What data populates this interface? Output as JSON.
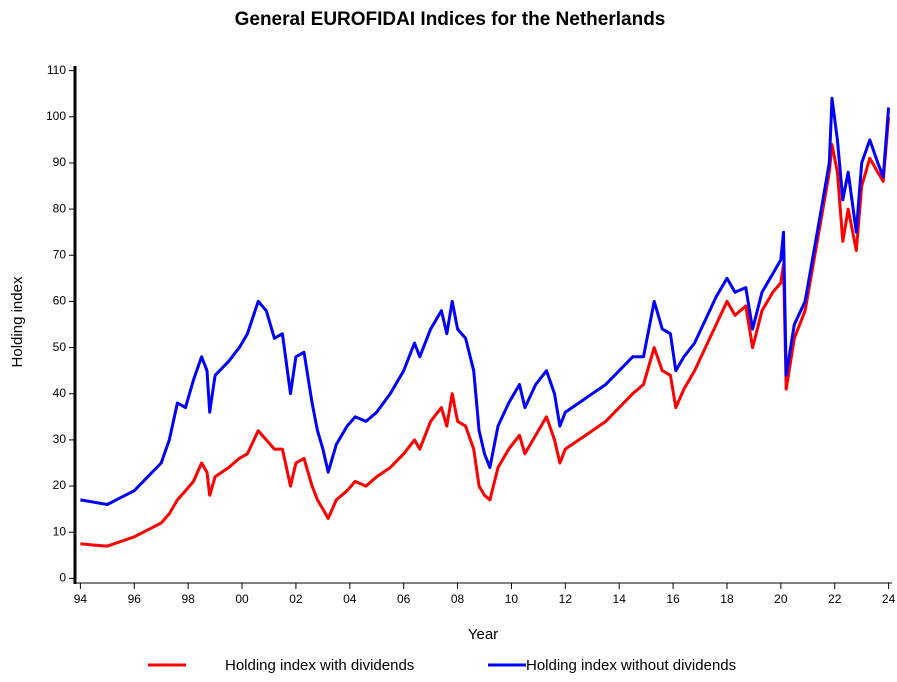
{
  "chart_data": {
    "type": "line",
    "title": "General EUROFIDAI Indices for the Netherlands",
    "x_label": "Year",
    "y_label": "Holding index",
    "x": [
      1994.0,
      1994.5,
      1995.0,
      1995.5,
      1996.0,
      1996.5,
      1997.0,
      1997.3,
      1997.6,
      1997.9,
      1998.2,
      1998.5,
      1998.7,
      1998.8,
      1999.0,
      1999.5,
      1999.9,
      2000.2,
      2000.6,
      2000.9,
      2001.2,
      2001.5,
      2001.8,
      2002.0,
      2002.3,
      2002.6,
      2002.8,
      2003.0,
      2003.2,
      2003.5,
      2003.9,
      2004.2,
      2004.6,
      2005.0,
      2005.5,
      2006.0,
      2006.4,
      2006.6,
      2007.0,
      2007.4,
      2007.6,
      2007.8,
      2008.0,
      2008.3,
      2008.6,
      2008.8,
      2009.0,
      2009.2,
      2009.5,
      2009.9,
      2010.3,
      2010.5,
      2010.9,
      2011.3,
      2011.6,
      2011.8,
      2012.0,
      2012.5,
      2013.0,
      2013.5,
      2014.0,
      2014.5,
      2014.9,
      2015.3,
      2015.6,
      2015.9,
      2016.1,
      2016.4,
      2016.8,
      2017.2,
      2017.6,
      2018.0,
      2018.3,
      2018.7,
      2018.95,
      2019.3,
      2019.7,
      2020.0,
      2020.1,
      2020.2,
      2020.5,
      2020.9,
      2021.2,
      2021.5,
      2021.8,
      2021.9,
      2022.1,
      2022.3,
      2022.5,
      2022.8,
      2023.0,
      2023.3,
      2023.6,
      2023.8,
      2024.0
    ],
    "series": [
      {
        "name": "Holding index with dividends",
        "color": "#ff0000",
        "values": [
          7.5,
          7.2,
          7,
          8,
          9,
          10.5,
          12,
          14,
          17,
          19,
          21,
          25,
          23,
          18,
          22,
          24,
          26,
          27,
          32,
          30,
          28,
          28,
          20,
          25,
          26,
          20,
          17,
          15,
          13,
          17,
          19,
          21,
          20,
          22,
          24,
          27,
          30,
          28,
          34,
          37,
          33,
          40,
          34,
          33,
          28,
          20,
          18,
          17,
          24,
          28,
          31,
          27,
          31,
          35,
          30,
          25,
          28,
          30,
          32,
          34,
          37,
          40,
          42,
          50,
          45,
          44,
          37,
          41,
          45,
          50,
          55,
          60,
          57,
          59,
          50,
          58,
          62,
          64,
          68,
          41,
          52,
          58,
          68,
          78,
          88,
          94,
          88,
          73,
          80,
          71,
          85,
          91,
          88,
          86,
          100
        ]
      },
      {
        "name": "Holding index without dividends",
        "color": "#0000ff",
        "values": [
          17,
          16.5,
          16,
          17.5,
          19,
          22,
          25,
          30,
          38,
          37,
          43,
          48,
          45,
          36,
          44,
          47,
          50,
          53,
          60,
          58,
          52,
          53,
          40,
          48,
          49,
          38,
          32,
          28,
          23,
          29,
          33,
          35,
          34,
          36,
          40,
          45,
          51,
          48,
          54,
          58,
          53,
          60,
          54,
          52,
          45,
          32,
          27,
          24,
          33,
          38,
          42,
          37,
          42,
          45,
          40,
          33,
          36,
          38,
          40,
          42,
          45,
          48,
          48,
          60,
          54,
          53,
          45,
          48,
          51,
          56,
          61,
          65,
          62,
          63,
          54,
          62,
          66,
          69,
          75,
          44,
          55,
          60,
          70,
          80,
          90,
          104,
          95,
          82,
          88,
          75,
          90,
          95,
          90,
          87,
          102
        ]
      }
    ],
    "xlim": [
      1993.8,
      2024.2
    ],
    "xticks": [
      {
        "value": 1994,
        "label": "94"
      },
      {
        "value": 1996,
        "label": "96"
      },
      {
        "value": 1998,
        "label": "98"
      },
      {
        "value": 2000,
        "label": "00"
      },
      {
        "value": 2002,
        "label": "02"
      },
      {
        "value": 2004,
        "label": "04"
      },
      {
        "value": 2006,
        "label": "06"
      },
      {
        "value": 2008,
        "label": "08"
      },
      {
        "value": 2010,
        "label": "10"
      },
      {
        "value": 2012,
        "label": "12"
      },
      {
        "value": 2014,
        "label": "14"
      },
      {
        "value": 2016,
        "label": "16"
      },
      {
        "value": 2018,
        "label": "18"
      },
      {
        "value": 2020,
        "label": "20"
      },
      {
        "value": 2022,
        "label": "22"
      },
      {
        "value": 2024,
        "label": "24"
      }
    ],
    "ylim": [
      -1,
      111
    ],
    "yticks": [
      0,
      10,
      20,
      30,
      40,
      50,
      60,
      70,
      80,
      90,
      100,
      110
    ],
    "grid": false,
    "legend": "bottom"
  }
}
